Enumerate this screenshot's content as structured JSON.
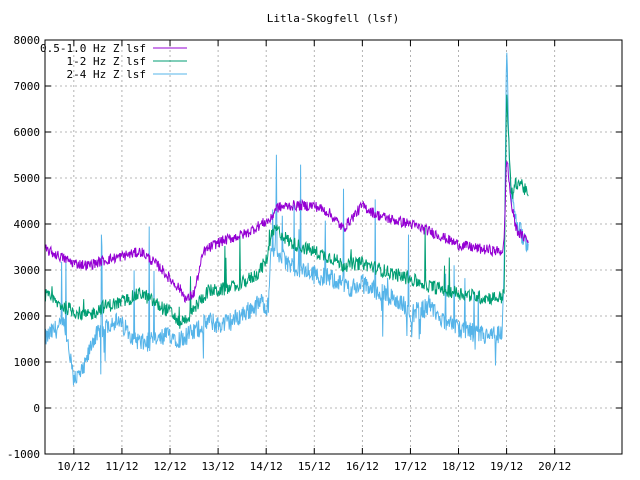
{
  "chart_data": {
    "type": "line",
    "title": "Litla-Skogfell (lsf)",
    "xlabel": "",
    "ylabel": "",
    "ylim": [
      -1000,
      8000
    ],
    "yticks": [
      -1000,
      0,
      1000,
      2000,
      3000,
      4000,
      5000,
      6000,
      7000,
      8000
    ],
    "xlim": [
      -0.6,
      11.4
    ],
    "xtick_labels": [
      "10/12",
      "11/12",
      "12/12",
      "13/12",
      "14/12",
      "15/12",
      "16/12",
      "17/12",
      "18/12",
      "19/12",
      "20/12"
    ],
    "xtick_positions": [
      0,
      1,
      2,
      3,
      4,
      5,
      6,
      7,
      8,
      9,
      10
    ],
    "grid": true,
    "legend_position": "top-left",
    "series": [
      {
        "name": "0.5-1.0 Hz Z lsf",
        "color": "#9400d3",
        "x": [
          -0.6,
          -0.3,
          0.0,
          0.3,
          0.6,
          1.0,
          1.4,
          1.8,
          2.0,
          2.2,
          2.35,
          2.5,
          2.7,
          3.0,
          3.3,
          3.6,
          3.9,
          4.1,
          4.2,
          4.5,
          5.0,
          5.3,
          5.6,
          6.0,
          6.3,
          6.6,
          7.0,
          7.5,
          8.0,
          8.5,
          8.9,
          8.95,
          9.0,
          9.1,
          9.2,
          9.3,
          9.4,
          9.45
        ],
        "y": [
          3450,
          3300,
          3150,
          3100,
          3200,
          3300,
          3400,
          3050,
          2800,
          2600,
          2350,
          2500,
          3400,
          3600,
          3700,
          3800,
          4000,
          4100,
          4350,
          4400,
          4400,
          4250,
          3900,
          4400,
          4200,
          4100,
          4000,
          3800,
          3550,
          3450,
          3400,
          3600,
          5500,
          4400,
          3900,
          3750,
          3700,
          3600
        ]
      },
      {
        "name": "1-2 Hz Z lsf",
        "color": "#009e73",
        "x": [
          -0.6,
          -0.3,
          0.0,
          0.3,
          0.6,
          1.0,
          1.4,
          1.8,
          2.0,
          2.2,
          2.4,
          2.6,
          2.8,
          3.0,
          3.4,
          3.8,
          4.0,
          4.1,
          4.2,
          4.5,
          5.0,
          5.4,
          5.6,
          6.0,
          6.4,
          7.0,
          7.4,
          8.0,
          8.5,
          8.9,
          8.95,
          9.0,
          9.1,
          9.2,
          9.3,
          9.4,
          9.45
        ],
        "y": [
          2450,
          2250,
          2100,
          2000,
          2200,
          2300,
          2500,
          2200,
          2100,
          1850,
          2000,
          2300,
          2550,
          2550,
          2650,
          2900,
          3200,
          3700,
          3900,
          3600,
          3400,
          3250,
          3100,
          3150,
          3000,
          2800,
          2650,
          2500,
          2400,
          2400,
          2600,
          6800,
          4600,
          4900,
          4900,
          4700,
          4600
        ]
      },
      {
        "name": "2-4 Hz Z lsf",
        "color": "#56b4e9",
        "x": [
          -0.6,
          -0.4,
          -0.2,
          0.0,
          0.2,
          0.4,
          0.6,
          0.8,
          1.0,
          1.4,
          1.8,
          2.0,
          2.2,
          2.5,
          2.8,
          3.0,
          3.3,
          3.6,
          3.9,
          4.05,
          4.1,
          4.2,
          4.5,
          5.0,
          5.4,
          5.8,
          6.0,
          6.4,
          6.8,
          7.0,
          7.4,
          7.8,
          8.0,
          8.3,
          8.6,
          8.9,
          8.95,
          9.0,
          9.05,
          9.1,
          9.2,
          9.3,
          9.4,
          9.45
        ],
        "y": [
          1500,
          1700,
          1800,
          600,
          800,
          1500,
          1700,
          1900,
          1800,
          1400,
          1500,
          1600,
          1500,
          1650,
          1900,
          1800,
          1900,
          2100,
          2300,
          2200,
          3600,
          3400,
          3100,
          2900,
          2800,
          2600,
          2700,
          2500,
          2300,
          2050,
          2200,
          1800,
          1700,
          1650,
          1550,
          1600,
          3000,
          8000,
          5500,
          4600,
          4100,
          3800,
          3650,
          3550
        ]
      }
    ]
  }
}
